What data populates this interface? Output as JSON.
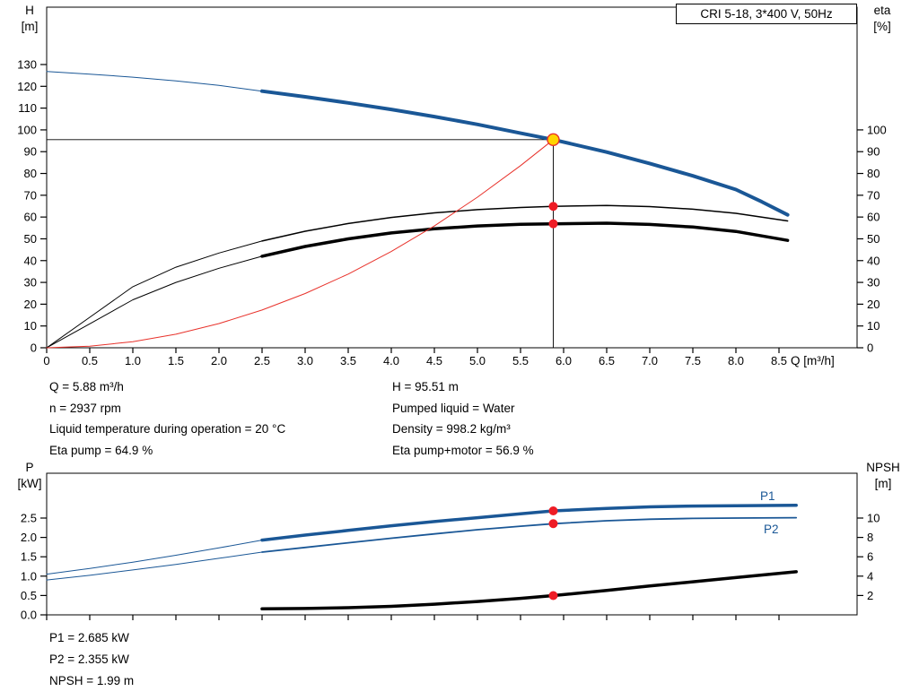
{
  "colors": {
    "curve_blue": "#1a5796",
    "curve_black": "#000000",
    "curve_red": "#e8322b",
    "dot_red": "#ee1c25",
    "duty_fill": "#ffd400",
    "duty_stroke": "#e8322b",
    "axis": "#000000",
    "label_blue": "#1a5796"
  },
  "info_top": {
    "left": [
      "Q = 5.88 m³/h",
      "n = 2937 rpm",
      "Liquid temperature during operation = 20 °C",
      "Eta pump = 64.9 %"
    ],
    "right": [
      "H = 95.51 m",
      "Pumped liquid = Water",
      "Density = 998.2 kg/m³",
      "Eta pump+motor = 56.9 %"
    ]
  },
  "info_bottom": [
    "P1 = 2.685 kW",
    "P2 = 2.355 kW",
    "NPSH = 1.99 m"
  ],
  "chart_data": [
    {
      "type": "line",
      "title": "CRI 5-18, 3*400 V, 50Hz",
      "x_axis": {
        "label": "Q [m³/h]",
        "min": 0,
        "max": 9.4,
        "tick_values": [
          0,
          0.5,
          1,
          1.5,
          2,
          2.5,
          3,
          3.5,
          4,
          4.5,
          5,
          5.5,
          6,
          6.5,
          7,
          7.5,
          8,
          8.5
        ],
        "tick_labels": [
          "0",
          "0.5",
          "1.0",
          "1.5",
          "2.0",
          "2.5",
          "3.0",
          "3.5",
          "4.0",
          "4.5",
          "5.0",
          "5.5",
          "6.0",
          "6.5",
          "7.0",
          "7.5",
          "8.0",
          "8.5"
        ]
      },
      "y_left": {
        "title": [
          "H",
          "[m]"
        ],
        "min": 0,
        "max": 156,
        "tick_values": [
          0,
          10,
          20,
          30,
          40,
          50,
          60,
          70,
          80,
          90,
          100,
          110,
          120,
          130
        ],
        "tick_labels": [
          "0",
          "10",
          "20",
          "30",
          "40",
          "50",
          "60",
          "70",
          "80",
          "90",
          "100",
          "110",
          "120",
          "130"
        ]
      },
      "y_right": {
        "title": [
          "eta",
          "[%]"
        ],
        "min": 0,
        "max": 156,
        "tick_values": [
          0,
          10,
          20,
          30,
          40,
          50,
          60,
          70,
          80,
          90,
          100
        ],
        "tick_labels": [
          "0",
          "10",
          "20",
          "30",
          "40",
          "50",
          "60",
          "70",
          "80",
          "90",
          "100"
        ]
      },
      "crosshair": {
        "x": 5.88,
        "y": 95.51
      },
      "series": [
        {
          "name": "h-curve-extension",
          "color_key": "curve_blue",
          "width": 1,
          "axis": "left",
          "points": [
            [
              0,
              126.8
            ],
            [
              0.5,
              125.6
            ],
            [
              1.0,
              124.2
            ],
            [
              1.5,
              122.5
            ],
            [
              2.0,
              120.4
            ],
            [
              2.5,
              117.8
            ]
          ]
        },
        {
          "name": "h-curve",
          "color_key": "curve_blue",
          "width": 4,
          "axis": "left",
          "points": [
            [
              2.5,
              117.8
            ],
            [
              3.0,
              115.2
            ],
            [
              3.5,
              112.4
            ],
            [
              4.0,
              109.4
            ],
            [
              4.5,
              106.1
            ],
            [
              5.0,
              102.5
            ],
            [
              5.5,
              98.5
            ],
            [
              5.88,
              95.51
            ],
            [
              6.5,
              89.8
            ],
            [
              7.0,
              84.6
            ],
            [
              7.5,
              78.9
            ],
            [
              8.0,
              72.6
            ],
            [
              8.3,
              67.0
            ],
            [
              8.6,
              61.0
            ]
          ]
        },
        {
          "name": "eta-pump-curve-extension",
          "color_key": "curve_black",
          "width": 1,
          "axis": "right",
          "points": [
            [
              0,
              0
            ],
            [
              0.5,
              14
            ],
            [
              1.0,
              28
            ],
            [
              1.5,
              37
            ],
            [
              2.0,
              43.5
            ],
            [
              2.5,
              49
            ]
          ]
        },
        {
          "name": "eta-pump-curve",
          "color_key": "curve_black",
          "width": 1.5,
          "axis": "right",
          "points": [
            [
              2.5,
              49
            ],
            [
              3.0,
              53.5
            ],
            [
              3.5,
              57
            ],
            [
              4.0,
              59.8
            ],
            [
              4.5,
              61.9
            ],
            [
              5.0,
              63.4
            ],
            [
              5.5,
              64.4
            ],
            [
              5.88,
              64.9
            ],
            [
              6.5,
              65.3
            ],
            [
              7.0,
              64.8
            ],
            [
              7.5,
              63.6
            ],
            [
              8.0,
              61.7
            ],
            [
              8.6,
              58.2
            ]
          ]
        },
        {
          "name": "eta-pump-motor-curve-extension",
          "color_key": "curve_black",
          "width": 1,
          "axis": "right",
          "points": [
            [
              0,
              0
            ],
            [
              0.5,
              11
            ],
            [
              1.0,
              22
            ],
            [
              1.5,
              30
            ],
            [
              2.0,
              36.5
            ],
            [
              2.5,
              42
            ]
          ]
        },
        {
          "name": "eta-pump-motor-curve",
          "color_key": "curve_black",
          "width": 3.5,
          "axis": "right",
          "points": [
            [
              2.5,
              42
            ],
            [
              3.0,
              46.5
            ],
            [
              3.5,
              50
            ],
            [
              4.0,
              52.7
            ],
            [
              4.5,
              54.6
            ],
            [
              5.0,
              55.9
            ],
            [
              5.5,
              56.7
            ],
            [
              5.88,
              56.9
            ],
            [
              6.5,
              57.2
            ],
            [
              7.0,
              56.6
            ],
            [
              7.5,
              55.4
            ],
            [
              8.0,
              53.4
            ],
            [
              8.6,
              49.3
            ]
          ]
        },
        {
          "name": "system-curve",
          "color_key": "curve_red",
          "width": 1,
          "axis": "left",
          "points": [
            [
              0,
              0
            ],
            [
              0.5,
              0.7
            ],
            [
              1.0,
              2.8
            ],
            [
              1.5,
              6.2
            ],
            [
              2.0,
              11.1
            ],
            [
              2.5,
              17.3
            ],
            [
              3.0,
              24.9
            ],
            [
              3.5,
              33.8
            ],
            [
              4.0,
              44.2
            ],
            [
              4.5,
              55.9
            ],
            [
              5.0,
              69.1
            ],
            [
              5.5,
              83.6
            ],
            [
              5.88,
              95.51
            ]
          ]
        }
      ],
      "markers": [
        {
          "kind": "duty",
          "x": 5.88,
          "v": 95.51,
          "axis": "left",
          "name": "duty-point"
        },
        {
          "kind": "dot",
          "x": 5.88,
          "v": 64.9,
          "axis": "right",
          "name": "eta-pump-dot"
        },
        {
          "kind": "dot",
          "x": 5.88,
          "v": 56.9,
          "axis": "right",
          "name": "eta-pump-motor-dot"
        }
      ]
    },
    {
      "type": "line",
      "title": "",
      "curve_labels": {
        "p1": "P1",
        "p2": "P2"
      },
      "x_axis": {
        "label": "",
        "min": 0,
        "max": 9.4,
        "tick_values": [
          0,
          0.5,
          1,
          1.5,
          2,
          2.5,
          3,
          3.5,
          4,
          4.5,
          5,
          5.5,
          6,
          6.5,
          7,
          7.5,
          8,
          8.5
        ],
        "tick_labels": []
      },
      "y_left": {
        "title": [
          "P",
          "[kW]"
        ],
        "min": 0,
        "max": 3.66,
        "tick_values": [
          0,
          0.5,
          1,
          1.5,
          2,
          2.5
        ],
        "tick_labels": [
          "0.0",
          "0.5",
          "1.0",
          "1.5",
          "2.0",
          "2.5"
        ]
      },
      "y_right": {
        "title": [
          "NPSH",
          "[m]"
        ],
        "min": 0,
        "max": 14.6,
        "tick_values": [
          2,
          4,
          6,
          8,
          10
        ],
        "tick_labels": [
          "2",
          "4",
          "6",
          "8",
          "10"
        ]
      },
      "series": [
        {
          "name": "p1-curve-extension",
          "color_key": "curve_blue",
          "width": 1,
          "axis": "left",
          "points": [
            [
              0,
              1.05
            ],
            [
              0.5,
              1.2
            ],
            [
              1.0,
              1.36
            ],
            [
              1.5,
              1.54
            ],
            [
              2.0,
              1.73
            ],
            [
              2.5,
              1.93
            ]
          ]
        },
        {
          "name": "p1-curve",
          "color_key": "curve_blue",
          "width": 3.5,
          "axis": "left",
          "points": [
            [
              2.5,
              1.93
            ],
            [
              3.0,
              2.06
            ],
            [
              3.5,
              2.18
            ],
            [
              4.0,
              2.3
            ],
            [
              4.5,
              2.41
            ],
            [
              5.0,
              2.51
            ],
            [
              5.5,
              2.61
            ],
            [
              5.88,
              2.685
            ],
            [
              6.5,
              2.75
            ],
            [
              7.0,
              2.79
            ],
            [
              7.5,
              2.81
            ],
            [
              8.0,
              2.82
            ],
            [
              8.7,
              2.83
            ]
          ]
        },
        {
          "name": "p2-curve-extension",
          "color_key": "curve_blue",
          "width": 1,
          "axis": "left",
          "points": [
            [
              0,
              0.9
            ],
            [
              0.5,
              1.02
            ],
            [
              1.0,
              1.16
            ],
            [
              1.5,
              1.3
            ],
            [
              2.0,
              1.46
            ],
            [
              2.5,
              1.62
            ]
          ]
        },
        {
          "name": "p2-curve",
          "color_key": "curve_blue",
          "width": 1.8,
          "axis": "left",
          "points": [
            [
              2.5,
              1.62
            ],
            [
              3.0,
              1.74
            ],
            [
              3.5,
              1.86
            ],
            [
              4.0,
              1.98
            ],
            [
              4.5,
              2.09
            ],
            [
              5.0,
              2.2
            ],
            [
              5.5,
              2.29
            ],
            [
              5.88,
              2.355
            ],
            [
              6.5,
              2.43
            ],
            [
              7.0,
              2.47
            ],
            [
              7.5,
              2.49
            ],
            [
              8.0,
              2.5
            ],
            [
              8.7,
              2.51
            ]
          ]
        },
        {
          "name": "npsh-curve",
          "color_key": "curve_black",
          "width": 3.5,
          "axis": "right",
          "points": [
            [
              2.5,
              0.62
            ],
            [
              3.0,
              0.66
            ],
            [
              3.5,
              0.74
            ],
            [
              4.0,
              0.88
            ],
            [
              4.5,
              1.1
            ],
            [
              5.0,
              1.38
            ],
            [
              5.5,
              1.7
            ],
            [
              5.88,
              1.99
            ],
            [
              6.5,
              2.52
            ],
            [
              7.0,
              2.98
            ],
            [
              7.5,
              3.42
            ],
            [
              8.0,
              3.85
            ],
            [
              8.7,
              4.45
            ]
          ]
        }
      ],
      "markers": [
        {
          "kind": "dot",
          "x": 5.88,
          "v": 2.685,
          "axis": "left",
          "name": "p1-dot"
        },
        {
          "kind": "dot",
          "x": 5.88,
          "v": 2.355,
          "axis": "left",
          "name": "p2-dot"
        },
        {
          "kind": "dot",
          "x": 5.88,
          "v": 1.99,
          "axis": "right",
          "name": "npsh-dot"
        }
      ]
    }
  ]
}
